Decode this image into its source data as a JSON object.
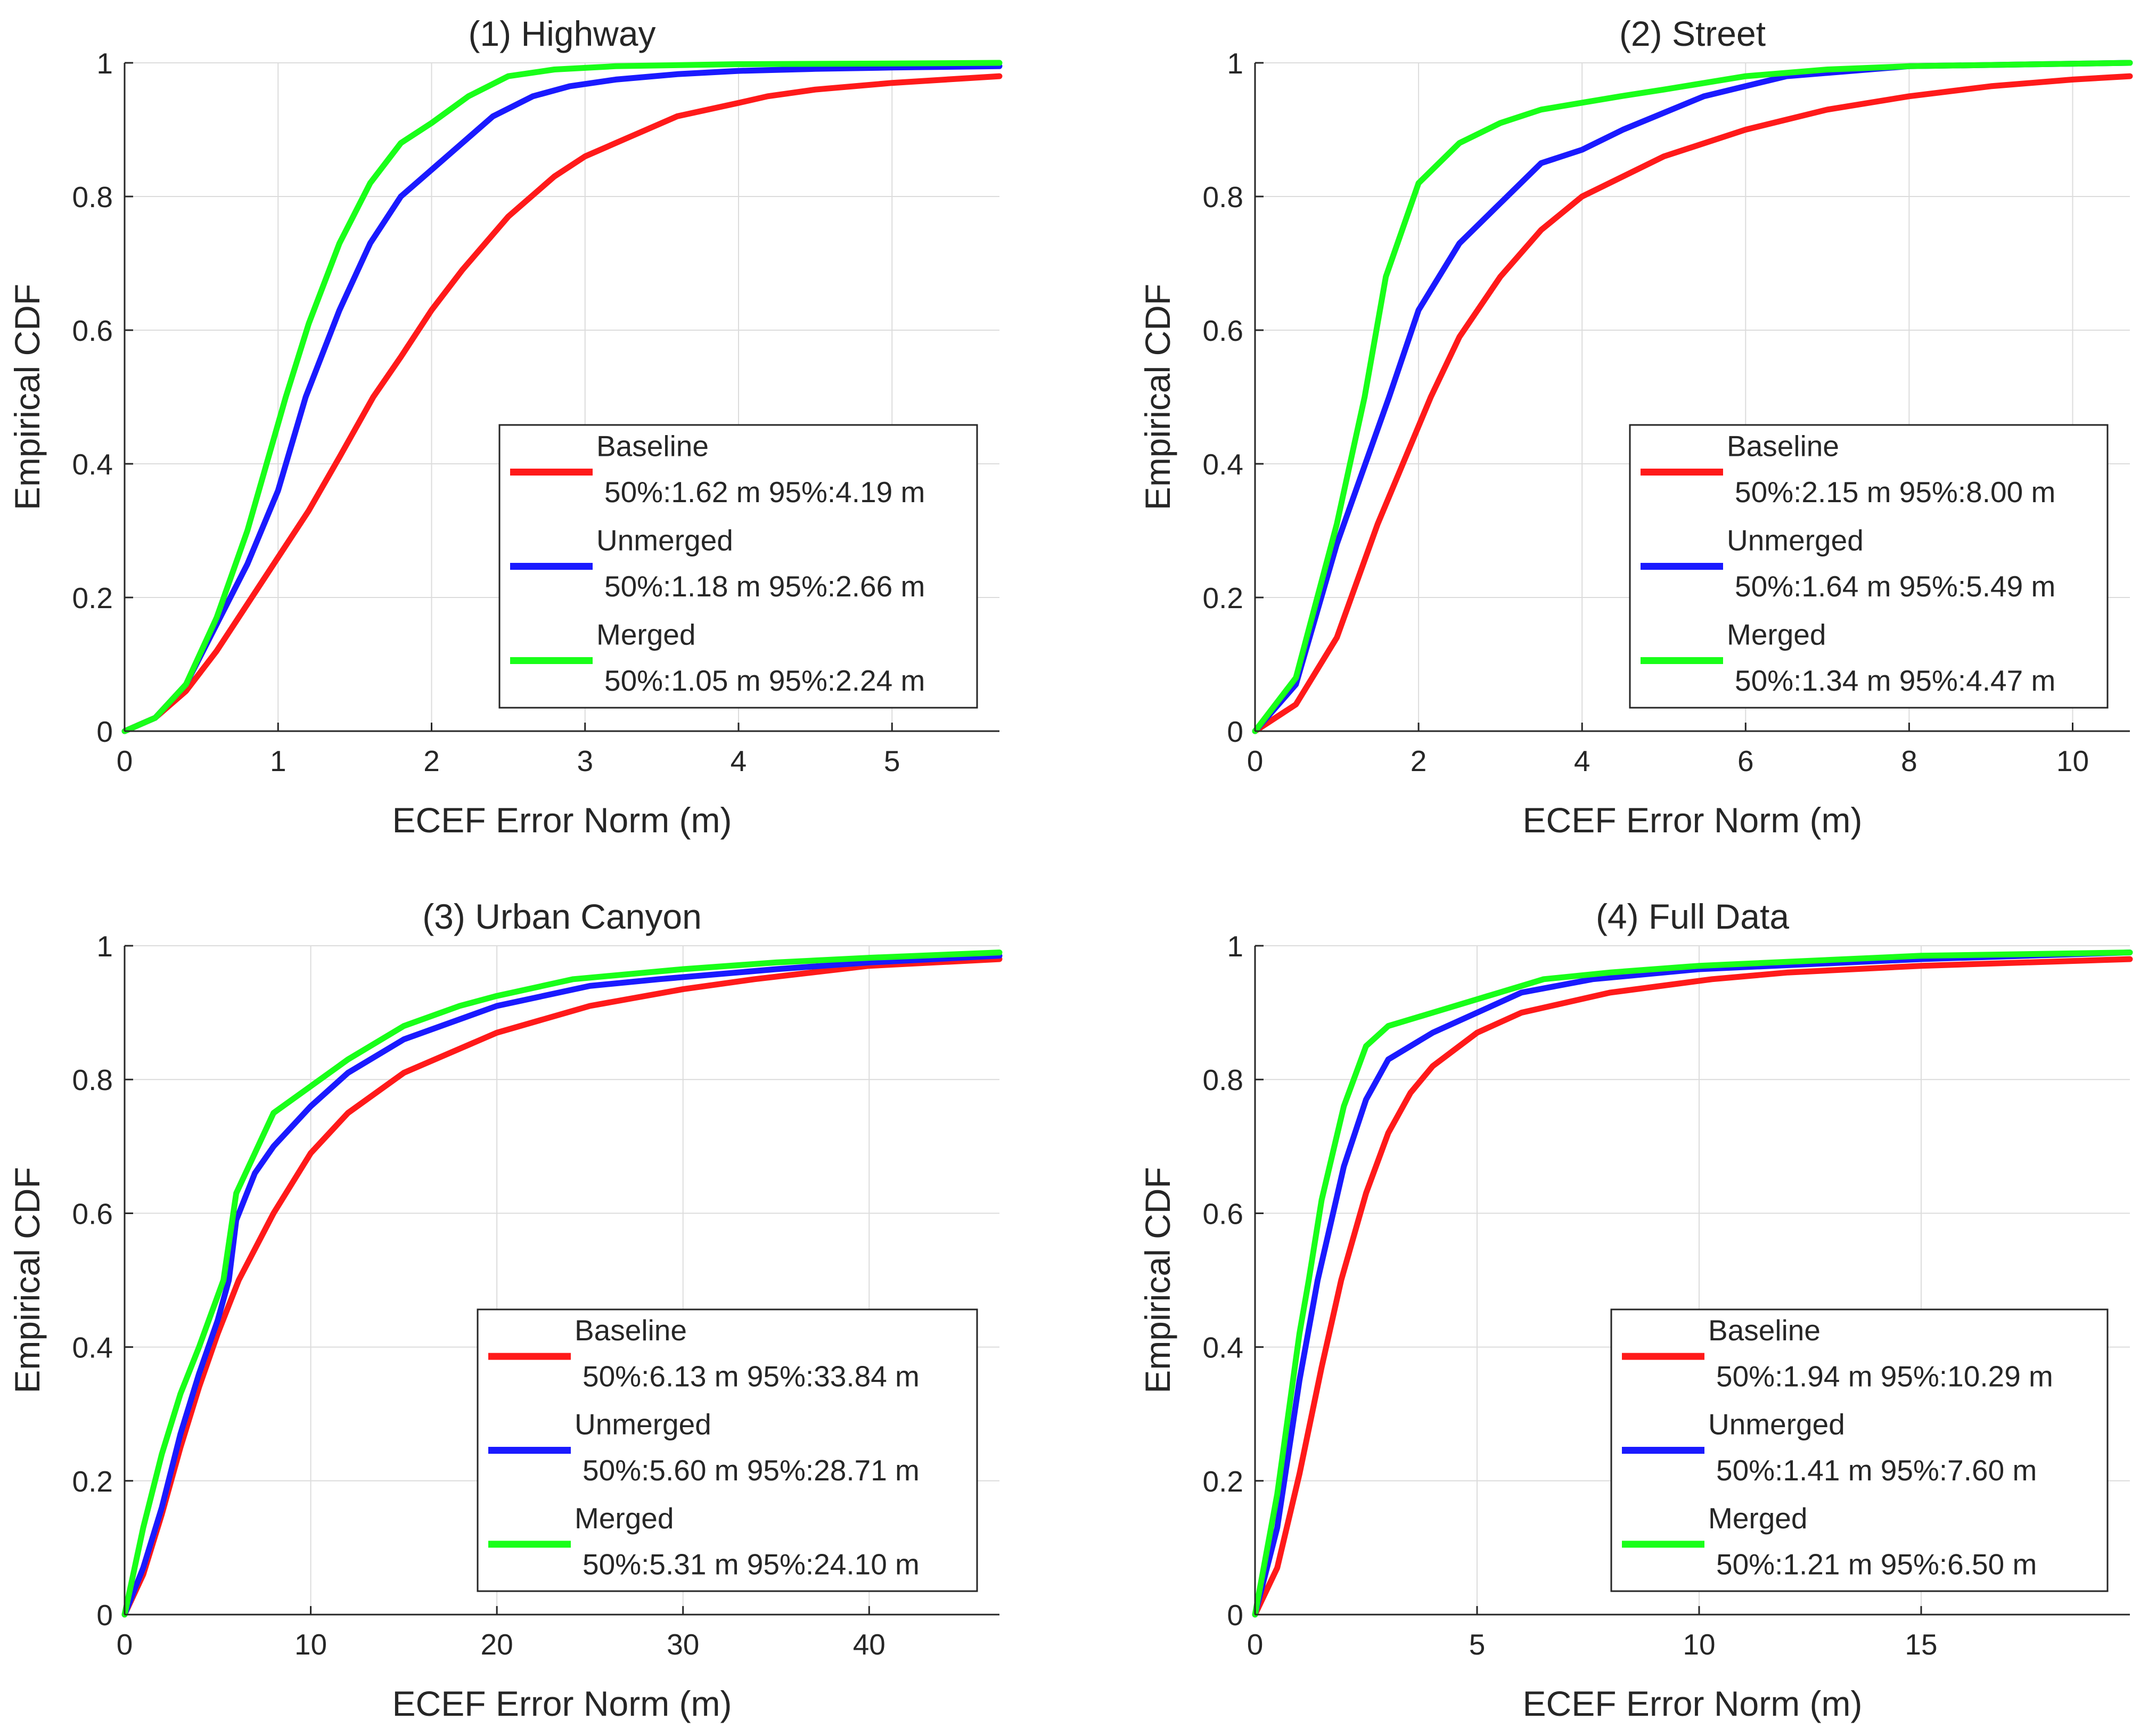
{
  "figure": {
    "legend_entry_order": [
      "Baseline",
      "Unmerged",
      "Merged"
    ]
  },
  "series_colors": {
    "Baseline": "#ff1a1a",
    "Unmerged": "#1a1aff",
    "Merged": "#19ff19"
  },
  "chart_data": [
    {
      "type": "line",
      "title": "(1) Highway",
      "xlabel": "ECEF Error Norm (m)",
      "ylabel": "Empirical CDF",
      "xlim": [
        0,
        5.7
      ],
      "ylim": [
        0,
        1
      ],
      "xticks": [
        0,
        1,
        2,
        3,
        4,
        5
      ],
      "xtick_labels": [
        "0",
        "1",
        "2",
        "3",
        "4",
        "5"
      ],
      "yticks": [
        0,
        0.2,
        0.4,
        0.6,
        0.8,
        1
      ],
      "ytick_labels": [
        "0",
        "0.2",
        "0.4",
        "0.6",
        "0.8",
        "1"
      ],
      "grid": true,
      "legend_position": "bottom-right",
      "series": [
        {
          "name": "Baseline",
          "stats": "50%:1.62 m 95%:4.19 m",
          "x": [
            0,
            0.2,
            0.4,
            0.6,
            0.8,
            1.0,
            1.2,
            1.4,
            1.62,
            1.8,
            2.0,
            2.2,
            2.5,
            2.8,
            3.0,
            3.3,
            3.6,
            4.0,
            4.19,
            4.5,
            5.0,
            5.7
          ],
          "y": [
            0,
            0.02,
            0.06,
            0.12,
            0.19,
            0.26,
            0.33,
            0.41,
            0.5,
            0.56,
            0.63,
            0.69,
            0.77,
            0.83,
            0.86,
            0.89,
            0.92,
            0.94,
            0.95,
            0.96,
            0.97,
            0.98
          ]
        },
        {
          "name": "Unmerged",
          "stats": "50%:1.18 m 95%:2.66 m",
          "x": [
            0,
            0.2,
            0.4,
            0.6,
            0.8,
            1.0,
            1.18,
            1.4,
            1.6,
            1.8,
            2.0,
            2.2,
            2.4,
            2.66,
            2.9,
            3.2,
            3.6,
            4.0,
            4.5,
            5.0,
            5.7
          ],
          "y": [
            0,
            0.02,
            0.07,
            0.16,
            0.25,
            0.36,
            0.5,
            0.63,
            0.73,
            0.8,
            0.84,
            0.88,
            0.92,
            0.95,
            0.965,
            0.975,
            0.983,
            0.988,
            0.991,
            0.993,
            0.995
          ]
        },
        {
          "name": "Merged",
          "stats": "50%:1.05 m 95%:2.24 m",
          "x": [
            0,
            0.2,
            0.4,
            0.6,
            0.8,
            1.05,
            1.2,
            1.4,
            1.6,
            1.8,
            2.0,
            2.24,
            2.5,
            2.8,
            3.2,
            4.0,
            5.0,
            5.7
          ],
          "y": [
            0,
            0.02,
            0.07,
            0.17,
            0.3,
            0.5,
            0.61,
            0.73,
            0.82,
            0.88,
            0.91,
            0.95,
            0.98,
            0.99,
            0.995,
            0.998,
            0.999,
            1.0
          ]
        }
      ]
    },
    {
      "type": "line",
      "title": "(2) Street",
      "xlabel": "ECEF Error Norm (m)",
      "ylabel": "Empirical CDF",
      "xlim": [
        0,
        10.7
      ],
      "ylim": [
        0,
        1
      ],
      "xticks": [
        0,
        2,
        4,
        6,
        8,
        10
      ],
      "xtick_labels": [
        "0",
        "2",
        "4",
        "6",
        "8",
        "10"
      ],
      "yticks": [
        0,
        0.2,
        0.4,
        0.6,
        0.8,
        1
      ],
      "ytick_labels": [
        "0",
        "0.2",
        "0.4",
        "0.6",
        "0.8",
        "1"
      ],
      "grid": true,
      "legend_position": "bottom-right",
      "series": [
        {
          "name": "Baseline",
          "stats": "50%:2.15 m 95%:8.00 m",
          "x": [
            0,
            0.5,
            1.0,
            1.5,
            2.15,
            2.5,
            3.0,
            3.5,
            4.0,
            5.0,
            6.0,
            7.0,
            8.0,
            9.0,
            10.0,
            10.7
          ],
          "y": [
            0,
            0.04,
            0.14,
            0.31,
            0.5,
            0.59,
            0.68,
            0.75,
            0.8,
            0.86,
            0.9,
            0.93,
            0.95,
            0.965,
            0.975,
            0.98
          ]
        },
        {
          "name": "Unmerged",
          "stats": "50%:1.64 m 95%:5.49 m",
          "x": [
            0,
            0.5,
            1.0,
            1.64,
            2.0,
            2.5,
            3.0,
            3.5,
            4.0,
            4.5,
            5.49,
            6.5,
            8.0,
            10.7
          ],
          "y": [
            0,
            0.07,
            0.28,
            0.5,
            0.63,
            0.73,
            0.79,
            0.85,
            0.87,
            0.9,
            0.95,
            0.98,
            0.995,
            1.0
          ]
        },
        {
          "name": "Merged",
          "stats": "50%:1.34 m 95%:4.47 m",
          "x": [
            0,
            0.5,
            1.0,
            1.34,
            1.6,
            2.0,
            2.5,
            3.0,
            3.5,
            4.47,
            5.0,
            6.0,
            7.0,
            8.0,
            10.7
          ],
          "y": [
            0,
            0.08,
            0.31,
            0.5,
            0.68,
            0.82,
            0.88,
            0.91,
            0.93,
            0.95,
            0.96,
            0.98,
            0.99,
            0.995,
            1.0
          ]
        }
      ]
    },
    {
      "type": "line",
      "title": "(3) Urban Canyon",
      "xlabel": "ECEF Error Norm (m)",
      "ylabel": "Empirical CDF",
      "xlim": [
        0,
        47
      ],
      "ylim": [
        0,
        1
      ],
      "xticks": [
        0,
        10,
        20,
        30,
        40
      ],
      "xtick_labels": [
        "0",
        "10",
        "20",
        "30",
        "40"
      ],
      "yticks": [
        0,
        0.2,
        0.4,
        0.6,
        0.8,
        1
      ],
      "ytick_labels": [
        "0",
        "0.2",
        "0.4",
        "0.6",
        "0.8",
        "1"
      ],
      "grid": true,
      "legend_position": "bottom-right",
      "series": [
        {
          "name": "Baseline",
          "stats": "50%:6.13 m 95%:33.84 m",
          "x": [
            0,
            1,
            2,
            3,
            4,
            5,
            6.13,
            8,
            10,
            12,
            15,
            20,
            25,
            30,
            33.84,
            40,
            47
          ],
          "y": [
            0,
            0.06,
            0.15,
            0.25,
            0.34,
            0.42,
            0.5,
            0.6,
            0.69,
            0.75,
            0.81,
            0.87,
            0.91,
            0.935,
            0.95,
            0.97,
            0.98
          ]
        },
        {
          "name": "Unmerged",
          "stats": "50%:5.60 m 95%:28.71 m",
          "x": [
            0,
            1,
            2,
            3,
            4,
            5,
            5.6,
            6,
            7,
            8,
            10,
            12,
            15,
            20,
            25,
            28.71,
            35,
            40,
            47
          ],
          "y": [
            0,
            0.07,
            0.16,
            0.27,
            0.36,
            0.44,
            0.5,
            0.59,
            0.66,
            0.7,
            0.76,
            0.81,
            0.86,
            0.91,
            0.94,
            0.95,
            0.965,
            0.975,
            0.985
          ]
        },
        {
          "name": "Merged",
          "stats": "50%:5.31 m 95%:24.10 m",
          "x": [
            0,
            1,
            2,
            3,
            4,
            5.31,
            6,
            7,
            8,
            10,
            12,
            15,
            18,
            20,
            24.1,
            30,
            35,
            40,
            47
          ],
          "y": [
            0,
            0.13,
            0.24,
            0.33,
            0.4,
            0.5,
            0.63,
            0.69,
            0.75,
            0.79,
            0.83,
            0.88,
            0.91,
            0.925,
            0.95,
            0.965,
            0.975,
            0.982,
            0.99
          ]
        }
      ]
    },
    {
      "type": "line",
      "title": "(4) Full Data",
      "xlabel": "ECEF Error Norm (m)",
      "ylabel": "Empirical CDF",
      "xlim": [
        0,
        19.7
      ],
      "ylim": [
        0,
        1
      ],
      "xticks": [
        0,
        5,
        10,
        15
      ],
      "xtick_labels": [
        "0",
        "5",
        "10",
        "15"
      ],
      "yticks": [
        0,
        0.2,
        0.4,
        0.6,
        0.8,
        1
      ],
      "ytick_labels": [
        "0",
        "0.2",
        "0.4",
        "0.6",
        "0.8",
        "1"
      ],
      "grid": true,
      "legend_position": "bottom-right",
      "series": [
        {
          "name": "Baseline",
          "stats": "50%:1.94 m 95%:10.29 m",
          "x": [
            0,
            0.5,
            1.0,
            1.5,
            1.94,
            2.5,
            3.0,
            3.5,
            4.0,
            5.0,
            6.0,
            8.0,
            10.29,
            12.0,
            15.0,
            19.7
          ],
          "y": [
            0,
            0.07,
            0.21,
            0.37,
            0.5,
            0.63,
            0.72,
            0.78,
            0.82,
            0.87,
            0.9,
            0.93,
            0.95,
            0.96,
            0.97,
            0.98
          ]
        },
        {
          "name": "Unmerged",
          "stats": "50%:1.41 m 95%:7.60 m",
          "x": [
            0,
            0.5,
            1.0,
            1.41,
            2.0,
            2.5,
            3.0,
            4.0,
            5.0,
            6.0,
            7.6,
            10.0,
            15.0,
            19.7
          ],
          "y": [
            0,
            0.13,
            0.35,
            0.5,
            0.67,
            0.77,
            0.83,
            0.87,
            0.9,
            0.93,
            0.95,
            0.965,
            0.98,
            0.99
          ]
        },
        {
          "name": "Merged",
          "stats": "50%:1.21 m 95%:6.50 m",
          "x": [
            0,
            0.5,
            1.0,
            1.21,
            1.5,
            2.0,
            2.5,
            3.0,
            4.0,
            5.0,
            6.5,
            8.0,
            10.0,
            15.0,
            19.7
          ],
          "y": [
            0,
            0.18,
            0.42,
            0.5,
            0.62,
            0.76,
            0.85,
            0.88,
            0.9,
            0.92,
            0.95,
            0.96,
            0.97,
            0.985,
            0.99
          ]
        }
      ]
    }
  ]
}
